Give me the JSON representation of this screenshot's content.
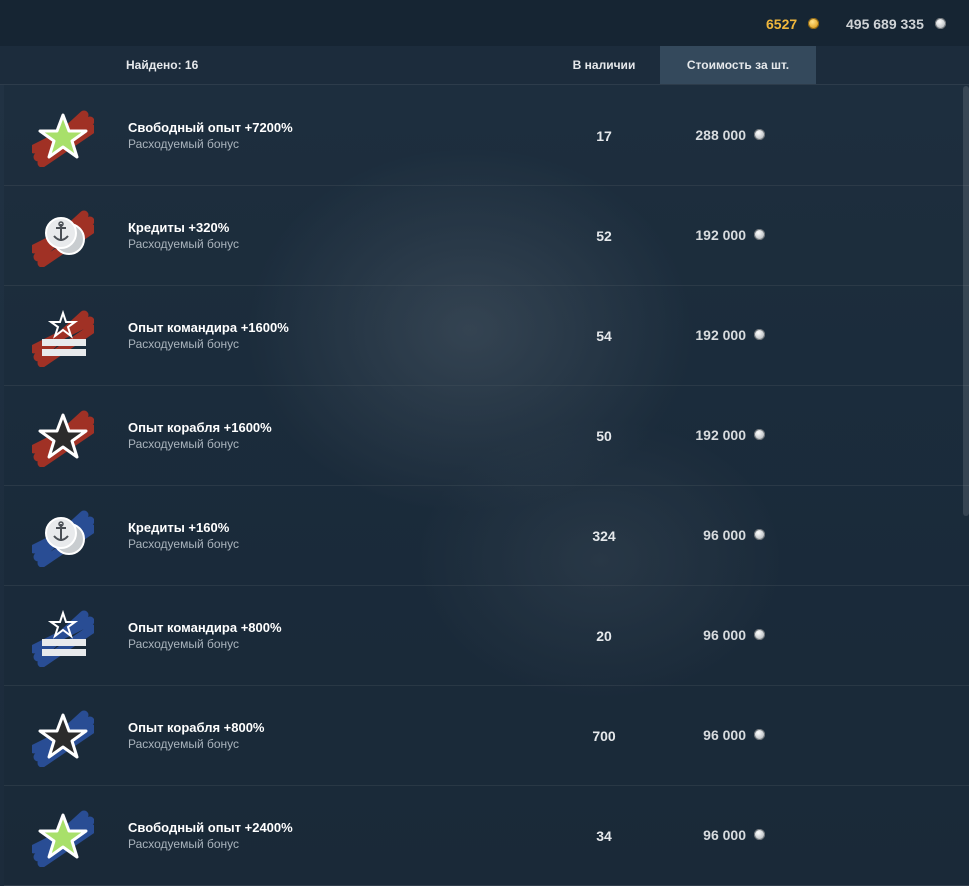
{
  "currency": {
    "gold": "6527",
    "silver": "495 689 335"
  },
  "header": {
    "found": "Найдено: 16",
    "in_stock": "В наличии",
    "cost_per_unit": "Стоимость за шт."
  },
  "items": [
    {
      "name": "Свободный опыт +7200%",
      "type": "Расходуемый бонус",
      "stock": "17",
      "price": "288 000",
      "icon": "star-light-green-icon",
      "tier": "red"
    },
    {
      "name": "Кредиты +320%",
      "type": "Расходуемый бонус",
      "stock": "52",
      "price": "192 000",
      "icon": "credits-coins-icon",
      "tier": "red"
    },
    {
      "name": "Опыт командира +1600%",
      "type": "Расходуемый бонус",
      "stock": "54",
      "price": "192 000",
      "icon": "commander-stripes-icon",
      "tier": "red"
    },
    {
      "name": "Опыт корабля +1600%",
      "type": "Расходуемый бонус",
      "stock": "50",
      "price": "192 000",
      "icon": "star-dark-icon",
      "tier": "red"
    },
    {
      "name": "Кредиты +160%",
      "type": "Расходуемый бонус",
      "stock": "324",
      "price": "96 000",
      "icon": "credits-coins-icon",
      "tier": "blue"
    },
    {
      "name": "Опыт командира +800%",
      "type": "Расходуемый бонус",
      "stock": "20",
      "price": "96 000",
      "icon": "commander-stripes-icon",
      "tier": "blue"
    },
    {
      "name": "Опыт корабля +800%",
      "type": "Расходуемый бонус",
      "stock": "700",
      "price": "96 000",
      "icon": "star-dark-icon",
      "tier": "blue"
    },
    {
      "name": "Свободный опыт +2400%",
      "type": "Расходуемый бонус",
      "stock": "34",
      "price": "96 000",
      "icon": "star-light-green-icon",
      "tier": "blue"
    }
  ],
  "colors": {
    "gold": "#f0b73c",
    "silver": "#cfd3d6",
    "tier_red": "#a83224",
    "tier_blue": "#2a4f99",
    "selected_header": "#34495c"
  }
}
